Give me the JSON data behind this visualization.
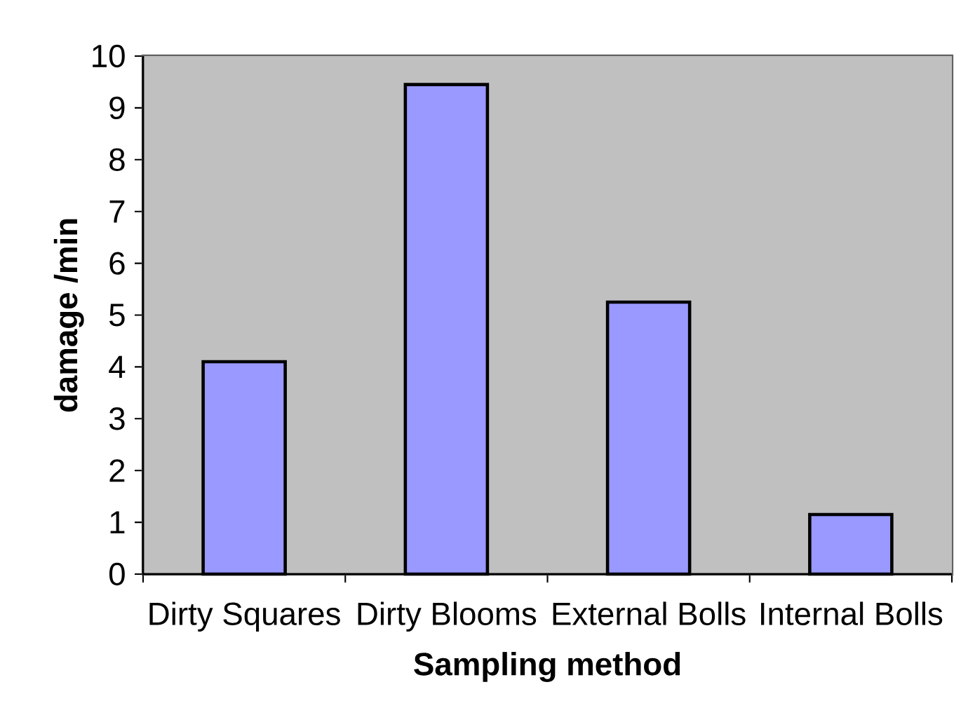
{
  "chart_data": {
    "type": "bar",
    "xlabel": "Sampling method",
    "ylabel": "damage /min",
    "categories": [
      "Dirty Squares",
      "Dirty Blooms",
      "External Bolls",
      "Internal Bolls"
    ],
    "values": [
      4.1,
      9.45,
      5.25,
      1.15
    ],
    "color": "#9999ff",
    "ylim": [
      0,
      10
    ],
    "yticks": [
      0,
      1,
      2,
      3,
      4,
      5,
      6,
      7,
      8,
      9,
      10
    ]
  }
}
